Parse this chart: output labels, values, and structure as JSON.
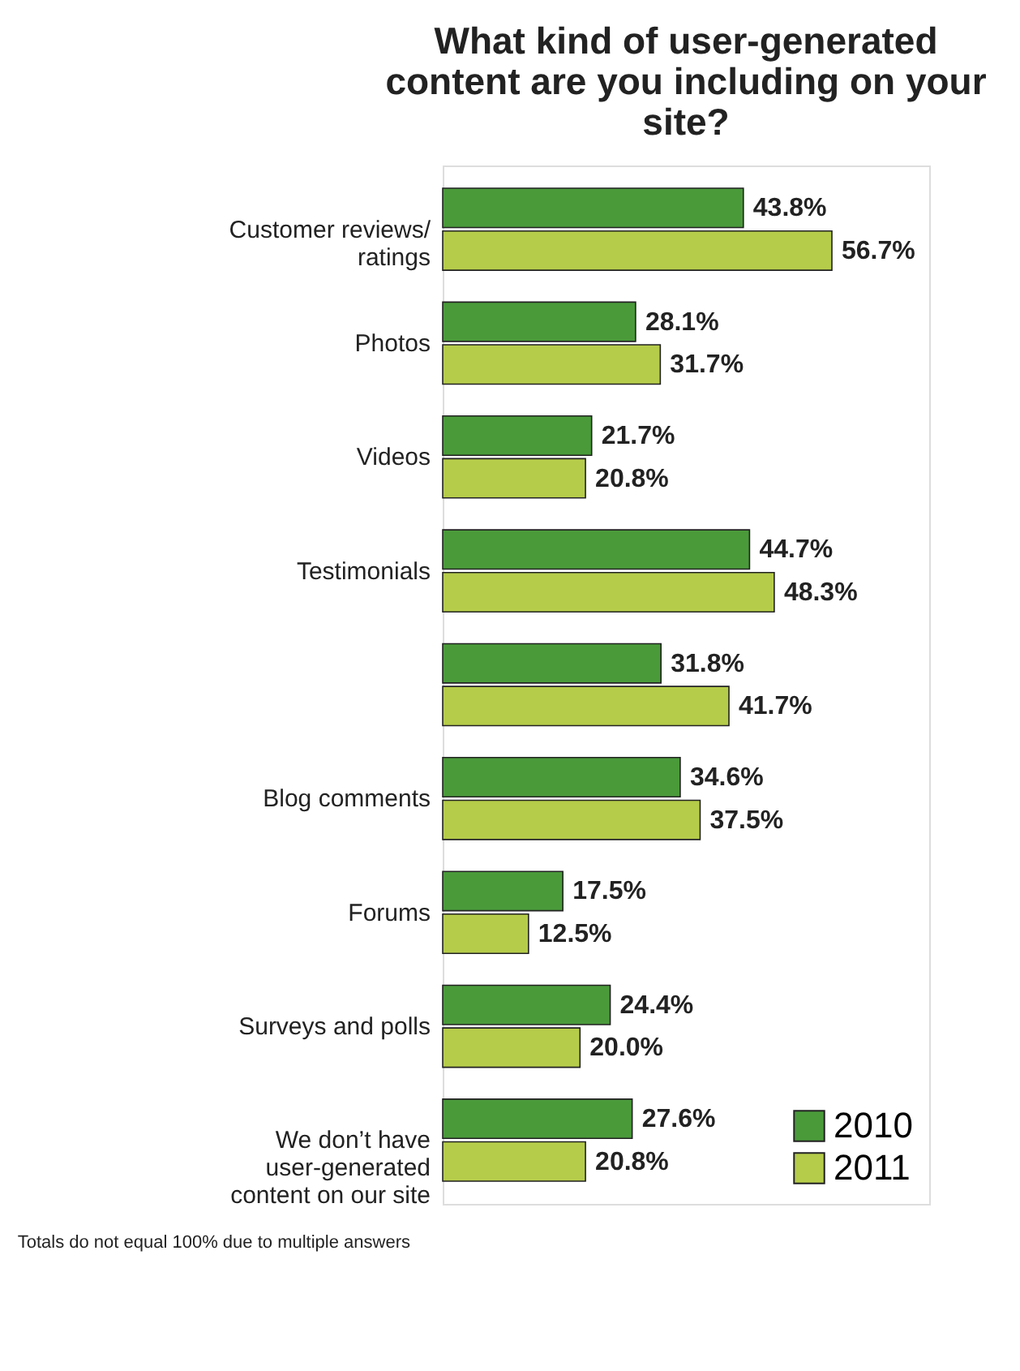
{
  "chart_data": {
    "type": "bar",
    "orientation": "horizontal",
    "title": "What kind of user-generated content are you including on your site?",
    "categories": [
      "Customer reviews/ ratings",
      "Photos",
      "Videos",
      "Testimonials",
      null,
      "Blog comments",
      "Forums",
      "Surveys and polls",
      "We don’t have user-generated content on our site"
    ],
    "series": [
      {
        "name": "2010",
        "color": "#4a9a3a",
        "values": [
          43.8,
          28.1,
          21.7,
          44.7,
          31.8,
          34.6,
          17.5,
          24.4,
          27.6
        ],
        "value_labels": [
          "43.8%",
          "28.1%",
          "21.7%",
          "44.7%",
          "31.8%",
          "34.6%",
          "17.5%",
          "24.4%",
          "27.6%"
        ]
      },
      {
        "name": "2011",
        "color": "#b5cc4a",
        "values": [
          56.7,
          31.7,
          20.8,
          48.3,
          41.7,
          37.5,
          12.5,
          20.0,
          20.8
        ],
        "value_labels": [
          "56.7%",
          "31.7%",
          "20.8%",
          "48.3%",
          "41.7%",
          "37.5%",
          "12.5%",
          "20.0%",
          "20.8%"
        ]
      }
    ],
    "legend": "bottom right",
    "annotations": [
      "Totals do not equal 100% due to multiple answers"
    ]
  }
}
